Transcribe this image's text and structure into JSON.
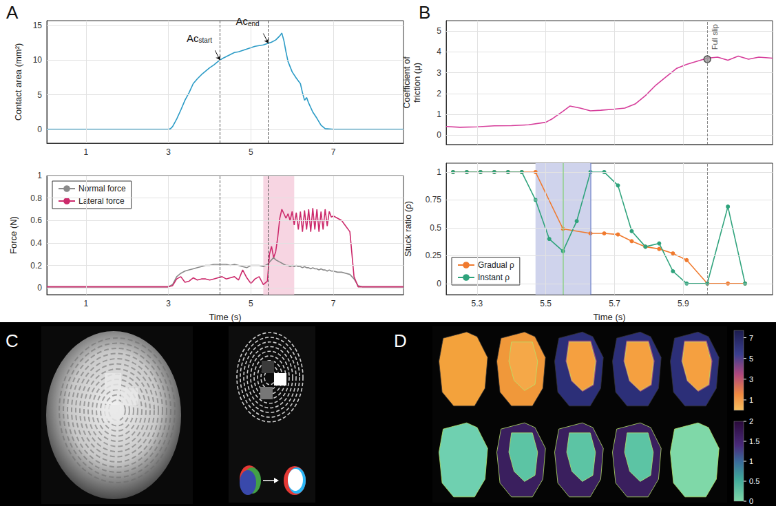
{
  "panel_labels": [
    "A",
    "B",
    "C",
    "D"
  ],
  "chart_data": [
    {
      "type": "line",
      "ylabel": "Contact area (mm²)",
      "xlim": [
        0.05,
        8.7
      ],
      "xticks": [
        1,
        3,
        5,
        7
      ],
      "ylim": [
        -2,
        15.7
      ],
      "yticks": [
        0,
        5,
        10,
        15
      ],
      "grid": true,
      "series": [
        {
          "color": "#2b9bc6",
          "x": [
            0.05,
            1,
            2,
            3,
            3.05,
            3.1,
            3.2,
            3.3,
            3.4,
            3.5,
            3.6,
            3.7,
            3.8,
            3.9,
            4.0,
            4.1,
            4.2,
            4.3,
            4.4,
            4.5,
            4.6,
            4.7,
            4.8,
            4.9,
            5.0,
            5.1,
            5.2,
            5.3,
            5.4,
            5.5,
            5.6,
            5.7,
            5.75,
            5.8,
            5.85,
            5.9,
            6.0,
            6.1,
            6.2,
            6.25,
            6.3,
            6.35,
            6.4,
            6.5,
            6.6,
            6.7,
            6.8,
            7,
            8,
            8.7
          ],
          "values": [
            0,
            0,
            0,
            0,
            0.1,
            0.4,
            1.5,
            2.8,
            4.2,
            5.3,
            6.6,
            7.3,
            7.9,
            8.4,
            8.9,
            9.3,
            9.8,
            10.2,
            10.5,
            10.8,
            11.1,
            11.2,
            11.4,
            11.6,
            11.8,
            12.0,
            12.1,
            12.2,
            12.4,
            12.6,
            12.9,
            13.5,
            13.9,
            12.8,
            11.2,
            9.8,
            8.3,
            7.4,
            6.6,
            5.3,
            4.2,
            4.6,
            3.8,
            2.5,
            1.6,
            0.6,
            0.1,
            0,
            0,
            0
          ]
        }
      ],
      "vlines": [
        {
          "x": 4.25,
          "color": "#555555",
          "line_style": "dashed"
        },
        {
          "x": 5.42,
          "color": "#555555",
          "line_style": "dashed"
        }
      ],
      "annotations": [
        {
          "text": "Ac",
          "subscript": "start",
          "x": 4.25,
          "y": 10.0
        },
        {
          "text": "Ac",
          "subscript": "end",
          "x": 5.42,
          "y": 12.45
        }
      ]
    },
    {
      "type": "line",
      "xlabel": "Time (s)",
      "ylabel": "Force (N)",
      "xlim": [
        0.05,
        8.7
      ],
      "xticks": [
        1,
        3,
        5,
        7
      ],
      "ylim": [
        -0.06,
        1
      ],
      "yticks": [
        0,
        0.2,
        0.4,
        0.6,
        0.8,
        1
      ],
      "grid": true,
      "legend": "upper left",
      "series": [
        {
          "name": "Normal force",
          "color": "#8a8a8a",
          "x": [
            0.05,
            1,
            2,
            3.0,
            3.1,
            3.2,
            3.3,
            3.4,
            3.5,
            3.6,
            3.7,
            3.8,
            3.9,
            4.0,
            4.1,
            4.2,
            4.3,
            4.4,
            4.5,
            4.6,
            4.7,
            4.8,
            4.9,
            5.0,
            5.1,
            5.2,
            5.3,
            5.4,
            5.45,
            5.5,
            5.55,
            5.6,
            5.65,
            5.7,
            5.75,
            5.8,
            5.85,
            5.9,
            5.95,
            6.0,
            6.05,
            6.1,
            6.15,
            6.2,
            6.25,
            6.3,
            6.35,
            6.4,
            6.45,
            6.5,
            6.55,
            6.6,
            6.65,
            6.7,
            6.75,
            6.8,
            6.85,
            6.9,
            6.95,
            7.0,
            7.1,
            7.2,
            7.3,
            7.4,
            7.5,
            7.6,
            7.7,
            7.8,
            8,
            8.7
          ],
          "values": [
            0.01,
            0.01,
            0.01,
            0.01,
            0.03,
            0.1,
            0.13,
            0.15,
            0.16,
            0.17,
            0.18,
            0.19,
            0.2,
            0.2,
            0.21,
            0.21,
            0.21,
            0.21,
            0.2,
            0.21,
            0.2,
            0.19,
            0.18,
            0.2,
            0.2,
            0.2,
            0.19,
            0.21,
            0.23,
            0.25,
            0.27,
            0.25,
            0.24,
            0.23,
            0.22,
            0.21,
            0.2,
            0.2,
            0.19,
            0.2,
            0.19,
            0.2,
            0.19,
            0.19,
            0.18,
            0.19,
            0.18,
            0.18,
            0.17,
            0.18,
            0.17,
            0.17,
            0.16,
            0.17,
            0.16,
            0.16,
            0.15,
            0.16,
            0.15,
            0.15,
            0.14,
            0.14,
            0.13,
            0.12,
            0.08,
            0.02,
            0.01,
            0.01,
            0.01,
            0.01
          ]
        },
        {
          "name": "Lateral force",
          "color": "#cc2a6b",
          "x": [
            0.05,
            1,
            2,
            3.0,
            3.1,
            3.2,
            3.3,
            3.4,
            3.5,
            3.6,
            3.7,
            3.8,
            3.9,
            4.0,
            4.1,
            4.2,
            4.3,
            4.4,
            4.5,
            4.6,
            4.7,
            4.8,
            4.9,
            5.0,
            5.1,
            5.2,
            5.3,
            5.4,
            5.45,
            5.5,
            5.55,
            5.6,
            5.65,
            5.7,
            5.75,
            5.8,
            5.85,
            5.9,
            5.95,
            6.0,
            6.05,
            6.1,
            6.15,
            6.2,
            6.25,
            6.3,
            6.35,
            6.4,
            6.45,
            6.5,
            6.55,
            6.6,
            6.65,
            6.7,
            6.75,
            6.8,
            6.85,
            6.9,
            6.95,
            7.0,
            7.1,
            7.2,
            7.3,
            7.4,
            7.5,
            7.6,
            7.7,
            7.8,
            8,
            8.7
          ],
          "values": [
            0.01,
            0.01,
            0.01,
            0.01,
            0.02,
            0.08,
            0.1,
            0.05,
            0.06,
            0.09,
            0.07,
            0.08,
            0.08,
            0.07,
            0.08,
            0.09,
            0.1,
            0.08,
            0.09,
            0.1,
            0.07,
            0.16,
            0.09,
            0.04,
            0.08,
            0.1,
            0.03,
            0.06,
            0.3,
            0.37,
            0.27,
            0.32,
            0.45,
            0.62,
            0.7,
            0.66,
            0.62,
            0.66,
            0.6,
            0.68,
            0.56,
            0.67,
            0.52,
            0.68,
            0.5,
            0.69,
            0.52,
            0.7,
            0.5,
            0.71,
            0.52,
            0.7,
            0.5,
            0.68,
            0.52,
            0.7,
            0.55,
            0.68,
            0.63,
            0.64,
            0.62,
            0.6,
            0.55,
            0.5,
            0.1,
            0.01,
            0.01,
            0.01,
            0.01,
            0.01
          ]
        }
      ],
      "shaded": [
        {
          "from": 5.3,
          "to": 6.05,
          "color": "#f7d5e2"
        }
      ],
      "vlines": [
        {
          "x": 4.25,
          "color": "#555555",
          "line_style": "dashed"
        },
        {
          "x": 5.42,
          "color": "#555555",
          "line_style": "dashed"
        }
      ]
    },
    {
      "type": "line",
      "ylabel": "Coefficient of friction (μ)",
      "xlim": [
        5.21,
        6.16
      ],
      "xticks": [
        5.3,
        5.5,
        5.7,
        5.9
      ],
      "ylim": [
        -0.45,
        5.5
      ],
      "yticks": [
        0,
        1,
        2,
        3,
        4,
        5
      ],
      "grid": true,
      "tick_labels": "y",
      "series": [
        {
          "color": "#d63d9a",
          "x": [
            5.21,
            5.25,
            5.3,
            5.35,
            5.4,
            5.45,
            5.5,
            5.52,
            5.55,
            5.57,
            5.6,
            5.63,
            5.66,
            5.7,
            5.73,
            5.76,
            5.79,
            5.82,
            5.85,
            5.88,
            5.91,
            5.94,
            5.97,
            6.0,
            6.03,
            6.06,
            6.09,
            6.12,
            6.16
          ],
          "values": [
            0.42,
            0.38,
            0.4,
            0.45,
            0.46,
            0.5,
            0.62,
            0.8,
            1.15,
            1.4,
            1.3,
            1.17,
            1.2,
            1.25,
            1.3,
            1.5,
            1.9,
            2.4,
            2.8,
            3.2,
            3.4,
            3.55,
            3.7,
            3.75,
            3.6,
            3.8,
            3.65,
            3.75,
            3.7
          ]
        }
      ],
      "vlines": [
        {
          "x": 5.97,
          "color": "#8a8a8a",
          "line_style": "dashed",
          "label": "Full slip"
        }
      ],
      "points": [
        {
          "x": 5.97,
          "y": 3.65,
          "color": "#9a9a9a"
        }
      ]
    },
    {
      "type": "line",
      "xlabel": "Time (s)",
      "ylabel": "Stuck ratio (ρ)",
      "xlim": [
        5.21,
        6.16
      ],
      "xticks": [
        5.3,
        5.5,
        5.7,
        5.9
      ],
      "ylim": [
        -0.1,
        1.08
      ],
      "yticks": [
        0,
        0.25,
        0.5,
        0.75,
        1
      ],
      "grid": true,
      "legend": "lower left",
      "series": [
        {
          "name": "Gradual ρ",
          "color": "#f07a2e",
          "marker": "circle",
          "x": [
            5.23,
            5.27,
            5.31,
            5.35,
            5.39,
            5.43,
            5.47,
            5.55,
            5.63,
            5.67,
            5.71,
            5.75,
            5.79,
            5.83,
            5.87,
            5.91,
            5.97,
            6.03,
            6.08
          ],
          "values": [
            1,
            1,
            1,
            1,
            1,
            1,
            1,
            0.49,
            0.45,
            0.45,
            0.44,
            0.38,
            0.33,
            0.31,
            0.27,
            0.21,
            0,
            0,
            0
          ]
        },
        {
          "name": "Instant ρ",
          "color": "#2fa37c",
          "marker": "circle",
          "x": [
            5.23,
            5.27,
            5.31,
            5.35,
            5.39,
            5.43,
            5.47,
            5.51,
            5.55,
            5.59,
            5.63,
            5.67,
            5.71,
            5.75,
            5.79,
            5.83,
            5.87,
            5.91,
            5.97,
            6.03,
            6.08
          ],
          "values": [
            1,
            1,
            1,
            1,
            1,
            1,
            0.75,
            0.4,
            0.29,
            0.56,
            1,
            1,
            0.88,
            0.47,
            0.33,
            0.36,
            0.11,
            0,
            0,
            0.69,
            0
          ]
        }
      ],
      "shaded": [
        {
          "from": 5.47,
          "to": 5.63,
          "color": "#cfd3ec"
        }
      ],
      "vlines": [
        {
          "x": 5.55,
          "color": "#8fd18a",
          "line_style": "solid"
        },
        {
          "x": 5.63,
          "color": "#7f8fcf",
          "line_style": "solid"
        },
        {
          "x": 5.97,
          "color": "#8a8a8a",
          "line_style": "dashed"
        }
      ]
    }
  ],
  "colorbars": [
    {
      "lim": [
        0,
        7.7
      ],
      "ticks": [
        1,
        3,
        5,
        7
      ]
    },
    {
      "lim": [
        0,
        2
      ],
      "ticks": [
        0,
        0.5,
        1,
        1.5,
        2
      ]
    }
  ]
}
